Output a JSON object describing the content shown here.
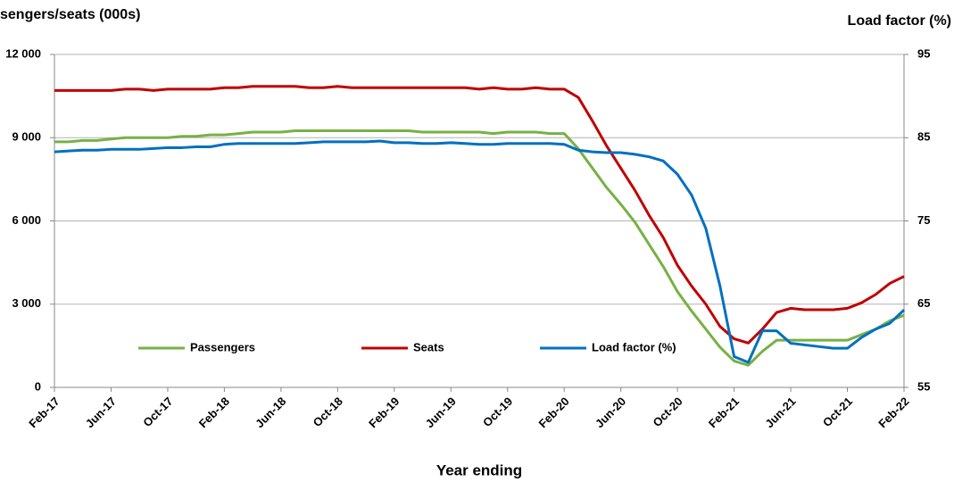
{
  "chart_data": {
    "type": "line",
    "ylabel": "sengers/seats (000s)",
    "y2label": "Load factor (%)",
    "xlabel": "Year ending",
    "categories": [
      "Feb-17",
      null,
      null,
      null,
      "Jun-17",
      null,
      null,
      null,
      "Oct-17",
      null,
      null,
      null,
      "Feb-18",
      null,
      null,
      null,
      "Jun-18",
      null,
      null,
      null,
      "Oct-18",
      null,
      null,
      null,
      "Feb-19",
      null,
      null,
      null,
      "Jun-19",
      null,
      null,
      null,
      "Oct-19",
      null,
      null,
      null,
      "Feb-20",
      null,
      null,
      null,
      "Jun-20",
      null,
      null,
      null,
      "Oct-20",
      null,
      null,
      null,
      "Feb-21",
      null,
      null,
      null,
      "Jun-21",
      null,
      null,
      null,
      "Oct-21",
      null,
      null,
      null,
      "Feb-22"
    ],
    "series": [
      {
        "name": "Passengers",
        "color": "#77b144",
        "values": [
          8850,
          8850,
          8900,
          8900,
          8950,
          9000,
          9000,
          9000,
          9000,
          9050,
          9050,
          9100,
          9100,
          9150,
          9200,
          9200,
          9200,
          9250,
          9250,
          9250,
          9250,
          9250,
          9250,
          9250,
          9250,
          9250,
          9200,
          9200,
          9200,
          9200,
          9200,
          9150,
          9200,
          9200,
          9200,
          9150,
          9150,
          8600,
          7900,
          7200,
          6600,
          5950,
          5150,
          4350,
          3450,
          2750,
          2100,
          1450,
          950,
          800,
          1300,
          1700,
          1700,
          1700,
          1700,
          1700,
          1700,
          1900,
          2100,
          2400,
          2600
        ]
      },
      {
        "name": "Seats",
        "color": "#c00000",
        "values": [
          10700,
          10700,
          10700,
          10700,
          10700,
          10750,
          10750,
          10700,
          10750,
          10750,
          10750,
          10750,
          10800,
          10800,
          10850,
          10850,
          10850,
          10850,
          10800,
          10800,
          10850,
          10800,
          10800,
          10800,
          10800,
          10800,
          10800,
          10800,
          10800,
          10800,
          10750,
          10800,
          10750,
          10750,
          10800,
          10750,
          10750,
          10450,
          9600,
          8700,
          7900,
          7100,
          6200,
          5400,
          4400,
          3650,
          3000,
          2200,
          1750,
          1600,
          2100,
          2700,
          2850,
          2800,
          2800,
          2800,
          2850,
          3050,
          3350,
          3750,
          4000
        ]
      },
      {
        "name": "Load factor (%)",
        "color": "#0070c0",
        "axis": "y2",
        "values": [
          83.3,
          83.4,
          83.5,
          83.5,
          83.6,
          83.6,
          83.6,
          83.7,
          83.8,
          83.8,
          83.9,
          83.9,
          84.2,
          84.3,
          84.3,
          84.3,
          84.3,
          84.3,
          84.4,
          84.5,
          84.5,
          84.5,
          84.5,
          84.6,
          84.4,
          84.4,
          84.3,
          84.3,
          84.4,
          84.3,
          84.2,
          84.2,
          84.3,
          84.3,
          84.3,
          84.3,
          84.2,
          83.5,
          83.3,
          83.2,
          83.2,
          83.0,
          82.7,
          82.2,
          80.6,
          78.1,
          74.1,
          67.2,
          58.7,
          58.0,
          61.8,
          61.8,
          60.3,
          60.1,
          59.9,
          59.7,
          59.7,
          61,
          62,
          62.7,
          64.3
        ]
      }
    ],
    "ylim": [
      0,
      12000
    ],
    "yticks": [
      {
        "value": 0,
        "label": "0"
      },
      {
        "value": 3000,
        "label": "3 000"
      },
      {
        "value": 6000,
        "label": "6 000"
      },
      {
        "value": 9000,
        "label": "9 000"
      },
      {
        "value": 12000,
        "label": "12 000"
      }
    ],
    "y2lim": [
      55,
      95
    ],
    "y2ticks": [
      55,
      65,
      75,
      85,
      95
    ],
    "grid": true
  }
}
